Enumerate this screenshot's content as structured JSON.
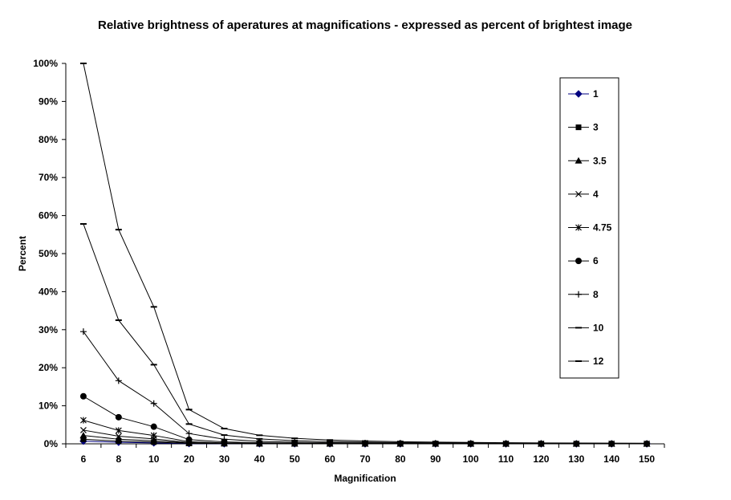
{
  "chart_data": {
    "type": "line",
    "title": "Relative brightness of aperatures at magnifications - expressed as percent of brightest image",
    "xlabel": "Magnification",
    "ylabel": "Percent",
    "ylim": [
      0,
      100
    ],
    "yticks": [
      "0%",
      "10%",
      "20%",
      "30%",
      "40%",
      "50%",
      "60%",
      "70%",
      "80%",
      "90%",
      "100%"
    ],
    "categories": [
      "6",
      "8",
      "10",
      "20",
      "30",
      "40",
      "50",
      "60",
      "70",
      "80",
      "90",
      "100",
      "110",
      "120",
      "130",
      "140",
      "150"
    ],
    "legend_position": "right",
    "series": [
      {
        "name": "1",
        "marker": "diamond",
        "color": "#000080",
        "values": [
          0.7,
          0.4,
          0.25,
          0.06,
          0.03,
          0.02,
          0.01,
          0.01,
          0.0,
          0.0,
          0.0,
          0.0,
          0.0,
          0.0,
          0.0,
          0.0,
          0.0
        ]
      },
      {
        "name": "3",
        "marker": "square",
        "color": "#000000",
        "values": [
          1.2,
          0.7,
          0.45,
          0.11,
          0.05,
          0.03,
          0.02,
          0.01,
          0.01,
          0.01,
          0.01,
          0.0,
          0.0,
          0.0,
          0.0,
          0.0,
          0.0
        ]
      },
      {
        "name": "3.5",
        "marker": "triangle",
        "color": "#000000",
        "values": [
          2.2,
          1.2,
          0.8,
          0.2,
          0.09,
          0.05,
          0.03,
          0.02,
          0.02,
          0.01,
          0.01,
          0.01,
          0.01,
          0.01,
          0.0,
          0.0,
          0.0
        ]
      },
      {
        "name": "4",
        "marker": "x",
        "color": "#000000",
        "values": [
          3.6,
          2.0,
          1.3,
          0.32,
          0.14,
          0.08,
          0.05,
          0.04,
          0.03,
          0.02,
          0.02,
          0.01,
          0.01,
          0.01,
          0.01,
          0.01,
          0.01
        ]
      },
      {
        "name": "4.75",
        "marker": "star",
        "color": "#000000",
        "values": [
          6.2,
          3.5,
          2.2,
          0.55,
          0.25,
          0.14,
          0.09,
          0.06,
          0.05,
          0.04,
          0.03,
          0.02,
          0.02,
          0.02,
          0.01,
          0.01,
          0.01
        ]
      },
      {
        "name": "6",
        "marker": "circle",
        "color": "#000000",
        "values": [
          12.5,
          7.0,
          4.5,
          1.1,
          0.5,
          0.28,
          0.18,
          0.13,
          0.09,
          0.07,
          0.06,
          0.05,
          0.04,
          0.03,
          0.03,
          0.02,
          0.02
        ]
      },
      {
        "name": "8",
        "marker": "plus",
        "color": "#000000",
        "values": [
          29.5,
          16.6,
          10.6,
          2.7,
          1.2,
          0.66,
          0.42,
          0.3,
          0.22,
          0.17,
          0.13,
          0.11,
          0.09,
          0.07,
          0.06,
          0.05,
          0.05
        ]
      },
      {
        "name": "10",
        "marker": "dash",
        "color": "#000000",
        "values": [
          57.8,
          32.5,
          20.8,
          5.2,
          2.3,
          1.3,
          0.83,
          0.58,
          0.42,
          0.33,
          0.26,
          0.21,
          0.17,
          0.14,
          0.12,
          0.11,
          0.09
        ]
      },
      {
        "name": "12",
        "marker": "dash",
        "color": "#000000",
        "values": [
          100,
          56.3,
          36.0,
          9.0,
          4.0,
          2.25,
          1.44,
          1.0,
          0.73,
          0.56,
          0.44,
          0.36,
          0.3,
          0.25,
          0.21,
          0.18,
          0.16
        ]
      }
    ]
  }
}
